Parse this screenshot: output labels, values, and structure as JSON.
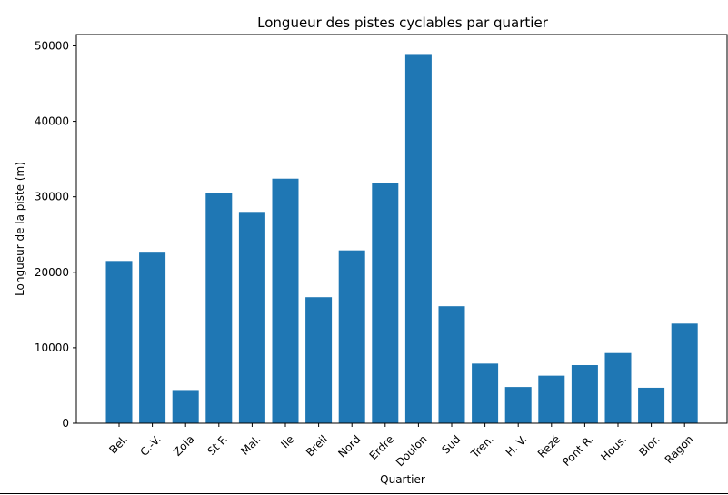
{
  "chart_data": {
    "type": "bar",
    "title": "Longueur des pistes cyclables par quartier",
    "xlabel": "Quartier",
    "ylabel": "Longueur de la piste (m)",
    "categories": [
      "Bel.",
      "C.-V.",
      "Zola",
      "St F.",
      "Mal.",
      "Ile",
      "Breil",
      "Nord",
      "Erdre",
      "Doulon",
      "Sud",
      "Tren.",
      "H. V.",
      "Rezé",
      "Pont R.",
      "Hous.",
      "Blor.",
      "Ragon"
    ],
    "values": [
      21500,
      22600,
      4400,
      30500,
      28000,
      32400,
      16700,
      22900,
      31800,
      48800,
      15500,
      7900,
      4800,
      6300,
      7700,
      9300,
      4700,
      13200
    ],
    "ylim": [
      0,
      51500
    ],
    "yticks": [
      0,
      10000,
      20000,
      30000,
      40000,
      50000
    ],
    "bar_color": "#1f77b4",
    "grid": false
  }
}
